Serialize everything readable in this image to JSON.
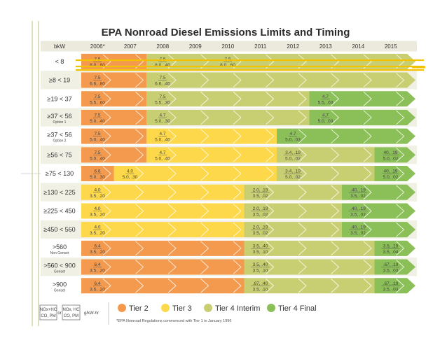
{
  "chart_data": {
    "type": "table",
    "title": "EPA Nonroad Diesel Emissions Limits and Timing",
    "column_header": "bkW",
    "years": [
      "2006*",
      "2007",
      "2008",
      "2009",
      "2010",
      "2011",
      "2012",
      "2013",
      "2014",
      "2015"
    ],
    "tiers": {
      "t2": {
        "name": "Tier 2",
        "color": "#f39a4e"
      },
      "t3": {
        "name": "Tier 3",
        "color": "#fdd84a"
      },
      "t4i": {
        "name": "Tier 4 Interim",
        "color": "#c8cf72"
      },
      "t4f": {
        "name": "Tier 4 Final",
        "color": "#8bbf58"
      }
    },
    "rows": [
      {
        "label": "< 8",
        "sub": "",
        "segments": [
          {
            "tier": "t2",
            "from": 0,
            "to": 2
          },
          {
            "tier": "t4i",
            "from": 2,
            "to": 10
          }
        ],
        "cells": [
          {
            "col": 0,
            "line1": "7.5",
            "line2": "8.0, .80"
          },
          {
            "col": 2,
            "line1": "7.5",
            "line2": "8.0, .40"
          },
          {
            "col": 4,
            "line1": "7.5",
            "line2": "8.0, .60"
          }
        ]
      },
      {
        "label": "≥8 < 19",
        "sub": "",
        "segments": [
          {
            "tier": "t2",
            "from": 0,
            "to": 2
          },
          {
            "tier": "t4i",
            "from": 2,
            "to": 10
          }
        ],
        "cells": [
          {
            "col": 0,
            "line1": "7.5",
            "line2": "6.6, .80"
          },
          {
            "col": 2,
            "line1": "7.5",
            "line2": "6.6, .40"
          }
        ]
      },
      {
        "label": "≥19 < 37",
        "sub": "",
        "segments": [
          {
            "tier": "t2",
            "from": 0,
            "to": 2
          },
          {
            "tier": "t4i",
            "from": 2,
            "to": 7
          },
          {
            "tier": "t4f",
            "from": 7,
            "to": 10
          }
        ],
        "cells": [
          {
            "col": 0,
            "line1": "7.5",
            "line2": "5.5, .60"
          },
          {
            "col": 2,
            "line1": "7.5",
            "line2": "5.5, .30"
          },
          {
            "col": 7,
            "line1": "4.7",
            "line2": "5.5, .03"
          }
        ]
      },
      {
        "label": "≥37 < 56",
        "sub": "Option 1",
        "segments": [
          {
            "tier": "t2",
            "from": 0,
            "to": 2
          },
          {
            "tier": "t4i",
            "from": 2,
            "to": 7
          },
          {
            "tier": "t4f",
            "from": 7,
            "to": 10
          }
        ],
        "cells": [
          {
            "col": 0,
            "line1": "7.5",
            "line2": "5.0, .40"
          },
          {
            "col": 2,
            "line1": "4.7",
            "line2": "5.0, .30"
          },
          {
            "col": 7,
            "line1": "4.7",
            "line2": "5.0, .03"
          }
        ]
      },
      {
        "label": "≥37 < 56",
        "sub": "Option 2",
        "segments": [
          {
            "tier": "t2",
            "from": 0,
            "to": 2
          },
          {
            "tier": "t3",
            "from": 2,
            "to": 6
          },
          {
            "tier": "t4f",
            "from": 6,
            "to": 10
          }
        ],
        "cells": [
          {
            "col": 0,
            "line1": "7.5",
            "line2": "5.0, .40"
          },
          {
            "col": 2,
            "line1": "4.7",
            "line2": "5.0, .40"
          },
          {
            "col": 6,
            "line1": "4.7",
            "line2": "5.0, .03"
          }
        ]
      },
      {
        "label": "≥56 < 75",
        "sub": "",
        "segments": [
          {
            "tier": "t2",
            "from": 0,
            "to": 2
          },
          {
            "tier": "t3",
            "from": 2,
            "to": 6
          },
          {
            "tier": "t4i",
            "from": 6,
            "to": 9
          },
          {
            "tier": "t4f",
            "from": 9,
            "to": 10
          }
        ],
        "cells": [
          {
            "col": 0,
            "line1": "7.5",
            "line2": "5.0, .40"
          },
          {
            "col": 2,
            "line1": "4.7",
            "line2": "5.0, .40"
          },
          {
            "col": 6,
            "line1": "3.4, .19",
            "line2": "5.0, .02"
          },
          {
            "col": 9,
            "line1": "40, .19",
            "line2": "5.0, .02"
          }
        ]
      },
      {
        "label": "≥75 < 130",
        "sub": "",
        "segments": [
          {
            "tier": "t2",
            "from": 0,
            "to": 1
          },
          {
            "tier": "t3",
            "from": 1,
            "to": 6
          },
          {
            "tier": "t4i",
            "from": 6,
            "to": 9
          },
          {
            "tier": "t4f",
            "from": 9,
            "to": 10
          }
        ],
        "cells": [
          {
            "col": 0,
            "line1": "6.6",
            "line2": "5.0, .30"
          },
          {
            "col": 1,
            "line1": "4.0",
            "line2": "5.0, .30"
          },
          {
            "col": 6,
            "line1": "3.4, .19",
            "line2": "5.0, .02"
          },
          {
            "col": 9,
            "line1": "40, .19",
            "line2": "5.0, .02"
          }
        ]
      },
      {
        "label": "≥130 < 225",
        "sub": "",
        "segments": [
          {
            "tier": "t3",
            "from": 0,
            "to": 5
          },
          {
            "tier": "t4i",
            "from": 5,
            "to": 8
          },
          {
            "tier": "t4f",
            "from": 8,
            "to": 10
          }
        ],
        "cells": [
          {
            "col": 0,
            "line1": "4.0",
            "line2": "3.5, .20"
          },
          {
            "col": 5,
            "line1": "2.0, .19",
            "line2": "3.5, .02"
          },
          {
            "col": 8,
            "line1": ".40, .19",
            "line2": "3.5, .02"
          }
        ]
      },
      {
        "label": "≥225 < 450",
        "sub": "",
        "segments": [
          {
            "tier": "t3",
            "from": 0,
            "to": 5
          },
          {
            "tier": "t4i",
            "from": 5,
            "to": 8
          },
          {
            "tier": "t4f",
            "from": 8,
            "to": 10
          }
        ],
        "cells": [
          {
            "col": 0,
            "line1": "4.0",
            "line2": "3.5, .20"
          },
          {
            "col": 5,
            "line1": "2.0, .19",
            "line2": "3.5, .02"
          },
          {
            "col": 8,
            "line1": ".40, .19",
            "line2": "3.5, .02"
          }
        ]
      },
      {
        "label": "≥450 < 560",
        "sub": "",
        "segments": [
          {
            "tier": "t3",
            "from": 0,
            "to": 5
          },
          {
            "tier": "t4i",
            "from": 5,
            "to": 8
          },
          {
            "tier": "t4f",
            "from": 8,
            "to": 10
          }
        ],
        "cells": [
          {
            "col": 0,
            "line1": "4.0",
            "line2": "3.5, .20"
          },
          {
            "col": 5,
            "line1": "2.0, .19",
            "line2": "3.5, .02"
          },
          {
            "col": 8,
            "line1": ".40, .19",
            "line2": "3.5, .02"
          }
        ]
      },
      {
        "label": ">560",
        "sub": "Non Genset",
        "segments": [
          {
            "tier": "t2",
            "from": 0,
            "to": 5
          },
          {
            "tier": "t4i",
            "from": 5,
            "to": 9
          },
          {
            "tier": "t4f",
            "from": 9,
            "to": 10
          }
        ],
        "cells": [
          {
            "col": 0,
            "line1": "6.4",
            "line2": "3.5, .20"
          },
          {
            "col": 5,
            "line1": "3.5, .40",
            "line2": "3.5, .10"
          },
          {
            "col": 9,
            "line1": "3.5, .19",
            "line2": "3.5, .04"
          }
        ]
      },
      {
        "label": ">560 < 900",
        "sub": "Genset",
        "segments": [
          {
            "tier": "t2",
            "from": 0,
            "to": 5
          },
          {
            "tier": "t4i",
            "from": 5,
            "to": 9
          },
          {
            "tier": "t4f",
            "from": 9,
            "to": 10
          }
        ],
        "cells": [
          {
            "col": 0,
            "line1": "6.4",
            "line2": "3.5, .20"
          },
          {
            "col": 5,
            "line1": "3.5, .40",
            "line2": "3.5, .10"
          },
          {
            "col": 9,
            "line1": ".67, .19",
            "line2": "3.5, .03"
          }
        ]
      },
      {
        "label": ">900",
        "sub": "Genset",
        "segments": [
          {
            "tier": "t2",
            "from": 0,
            "to": 5
          },
          {
            "tier": "t4i",
            "from": 5,
            "to": 9
          },
          {
            "tier": "t4f",
            "from": 9,
            "to": 10
          }
        ],
        "cells": [
          {
            "col": 0,
            "line1": "6.4",
            "line2": "3.5, .20"
          },
          {
            "col": 5,
            "line1": ".67, .40",
            "line2": "3.5, .10"
          },
          {
            "col": 9,
            "line1": ".67, .19",
            "line2": "3.5, .03"
          }
        ]
      }
    ],
    "legend_units": {
      "box1_line1": "NOx+HC",
      "box1_line2": "CO, PM",
      "or": "or",
      "box2_line1": "NOx, HC",
      "box2_line2": "CO, PM",
      "unit": "g/kW-hr"
    },
    "footnote": "*EPA Nonroad Regulations commenced with Tier 1 in January 1996"
  }
}
